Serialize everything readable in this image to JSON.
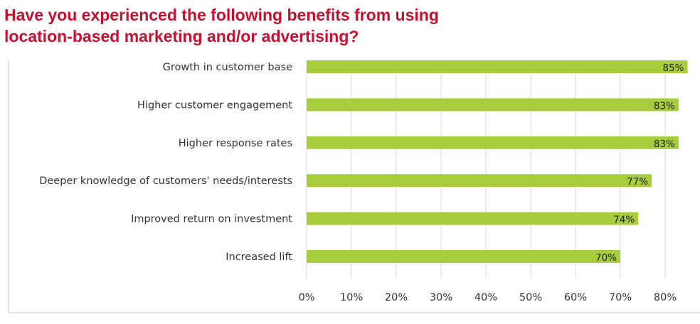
{
  "title_lines": [
    "Have you experienced the following benefits from using",
    "location-based marketing and/or advertising?"
  ],
  "colors": {
    "title": "#c8102e",
    "bar": "#a8cd3c",
    "grid": "#d9d9d9",
    "frame": "#d9d9d9"
  },
  "chart_data": {
    "type": "bar",
    "orientation": "horizontal",
    "categories": [
      "Growth in customer base",
      "Higher customer engagement",
      "Higher response rates",
      "Deeper knowledge of customers' needs/interests",
      "Improved return on investment",
      "Increased lift"
    ],
    "values": [
      85,
      83,
      83,
      77,
      74,
      70
    ],
    "data_labels": [
      "85%",
      "83%",
      "83%",
      "77%",
      "74%",
      "70%"
    ],
    "xlim": [
      0,
      85
    ],
    "xticks": [
      0,
      10,
      20,
      30,
      40,
      50,
      60,
      70,
      80
    ],
    "xtick_labels": [
      "0%",
      "10%",
      "20%",
      "30%",
      "40%",
      "50%",
      "60%",
      "70%",
      "80%"
    ],
    "grid": "vertical",
    "legend": "none"
  }
}
